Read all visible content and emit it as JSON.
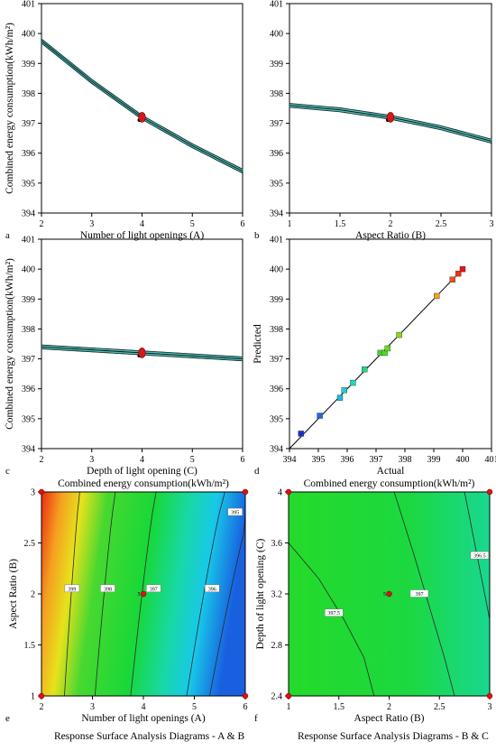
{
  "chart_data": [
    {
      "type": "line",
      "panel_letter": "a",
      "xlabel": "Number of light openings (A)",
      "ylabel": "Combined energy consumption(kWh/m²)",
      "xlim": [
        2,
        6
      ],
      "ylim": [
        394,
        401
      ],
      "xticks": [
        "2",
        "3",
        "4",
        "5",
        "6"
      ],
      "yticks": [
        "394",
        "395",
        "396",
        "397",
        "398",
        "399",
        "400",
        "401"
      ],
      "series": [
        {
          "x": [
            2,
            3,
            4,
            5,
            6
          ],
          "values": [
            399.75,
            398.4,
            397.2,
            396.25,
            395.4
          ]
        }
      ],
      "points": [
        [
          4,
          397.2
        ]
      ]
    },
    {
      "type": "line",
      "panel_letter": "b",
      "xlabel": "Aspect Ratio (B)",
      "ylabel": "",
      "xlim": [
        1,
        3
      ],
      "ylim": [
        394,
        401
      ],
      "xticks": [
        "1",
        "1.5",
        "2",
        "2.5",
        "3"
      ],
      "yticks": [
        "394",
        "395",
        "396",
        "397",
        "398",
        "399",
        "400",
        "401"
      ],
      "series": [
        {
          "x": [
            1,
            1.5,
            2,
            2.5,
            3
          ],
          "values": [
            397.6,
            397.45,
            397.2,
            396.85,
            396.4
          ]
        }
      ],
      "points": [
        [
          2,
          397.2
        ]
      ]
    },
    {
      "type": "line",
      "panel_letter": "c",
      "xlabel": "Depth of light opening (C)",
      "ylabel": "Combined energy consumption(kWh/m²)",
      "xlim": [
        2,
        6
      ],
      "ylim": [
        394,
        401
      ],
      "xticks": [
        "2",
        "3",
        "4",
        "5",
        "6"
      ],
      "yticks": [
        "394",
        "395",
        "396",
        "397",
        "398",
        "399",
        "400",
        "401"
      ],
      "series": [
        {
          "x": [
            2,
            3,
            4,
            5,
            6
          ],
          "values": [
            397.4,
            397.3,
            397.2,
            397.1,
            397.0
          ]
        }
      ],
      "points": [
        [
          4,
          397.2
        ]
      ]
    },
    {
      "type": "scatter",
      "panel_letter": "d",
      "xlabel": "Actual",
      "ylabel": "Predicted",
      "xlim": [
        394,
        401
      ],
      "ylim": [
        394,
        401
      ],
      "xticks": [
        "394",
        "395",
        "396",
        "397",
        "398",
        "399",
        "400",
        "401"
      ],
      "yticks": [
        "394",
        "395",
        "396",
        "397",
        "398",
        "399",
        "400",
        "401"
      ],
      "diagonal": [
        [
          394,
          394
        ],
        [
          400,
          400
        ]
      ],
      "points": [
        [
          394.4,
          394.5
        ],
        [
          395.05,
          395.1
        ],
        [
          395.75,
          395.7
        ],
        [
          395.9,
          395.95
        ],
        [
          396.2,
          396.2
        ],
        [
          396.6,
          396.65
        ],
        [
          397.15,
          397.2
        ],
        [
          397.3,
          397.2
        ],
        [
          397.4,
          397.35
        ],
        [
          397.8,
          397.8
        ],
        [
          399.1,
          399.1
        ],
        [
          399.65,
          399.65
        ],
        [
          399.85,
          399.85
        ],
        [
          400.0,
          400.0
        ]
      ],
      "point_colors": [
        "#1a2fd0",
        "#1a6ae0",
        "#19b8e8",
        "#19d0d8",
        "#19d8c0",
        "#22d880",
        "#3cd830",
        "#55d828",
        "#66d822",
        "#88d818",
        "#f0a020",
        "#f05018",
        "#f03018",
        "#f01010"
      ]
    },
    {
      "type": "heatmap",
      "panel_letter": "e",
      "title": "Combined energy consumption(kWh/m²)",
      "caption": "Response Surface Analysis Diagrams - A & B",
      "xlabel": "Number of light openings (A)",
      "ylabel": "Aspect Ratio (B)",
      "xlim": [
        2,
        6
      ],
      "ylim": [
        1,
        3
      ],
      "xticks": [
        "2",
        "3",
        "4",
        "5",
        "6"
      ],
      "yticks": [
        "1",
        "1.5",
        "2",
        "2.5",
        "3"
      ],
      "contour_labels": [
        "399",
        "398",
        "397",
        "396",
        "395"
      ],
      "center_label": "5",
      "corner_points": [
        [
          2,
          1
        ],
        [
          2,
          3
        ],
        [
          6,
          1
        ],
        [
          6,
          3
        ]
      ],
      "design_point": [
        4,
        2
      ]
    },
    {
      "type": "heatmap",
      "panel_letter": "f",
      "title": "Combined energy consumption(kWh/m²)",
      "caption": "Response Surface Analysis Diagrams - B & C",
      "xlabel": "Aspect Ratio (B)",
      "ylabel": "Depth of light opening (C)",
      "xlim": [
        1,
        3
      ],
      "ylim": [
        2.4,
        4
      ],
      "xticks": [
        "1",
        "1.5",
        "2",
        "2.5",
        "3"
      ],
      "yticks": [
        "2.4",
        "2.8",
        "3.2",
        "3.6",
        "4"
      ],
      "contour_labels": [
        "397.5",
        "397",
        "396.5"
      ],
      "center_label": "5",
      "corner_points": [
        [
          1,
          2.4
        ],
        [
          1,
          4
        ],
        [
          3,
          2.4
        ],
        [
          3,
          4
        ]
      ],
      "design_point": [
        2,
        3.2
      ]
    }
  ]
}
